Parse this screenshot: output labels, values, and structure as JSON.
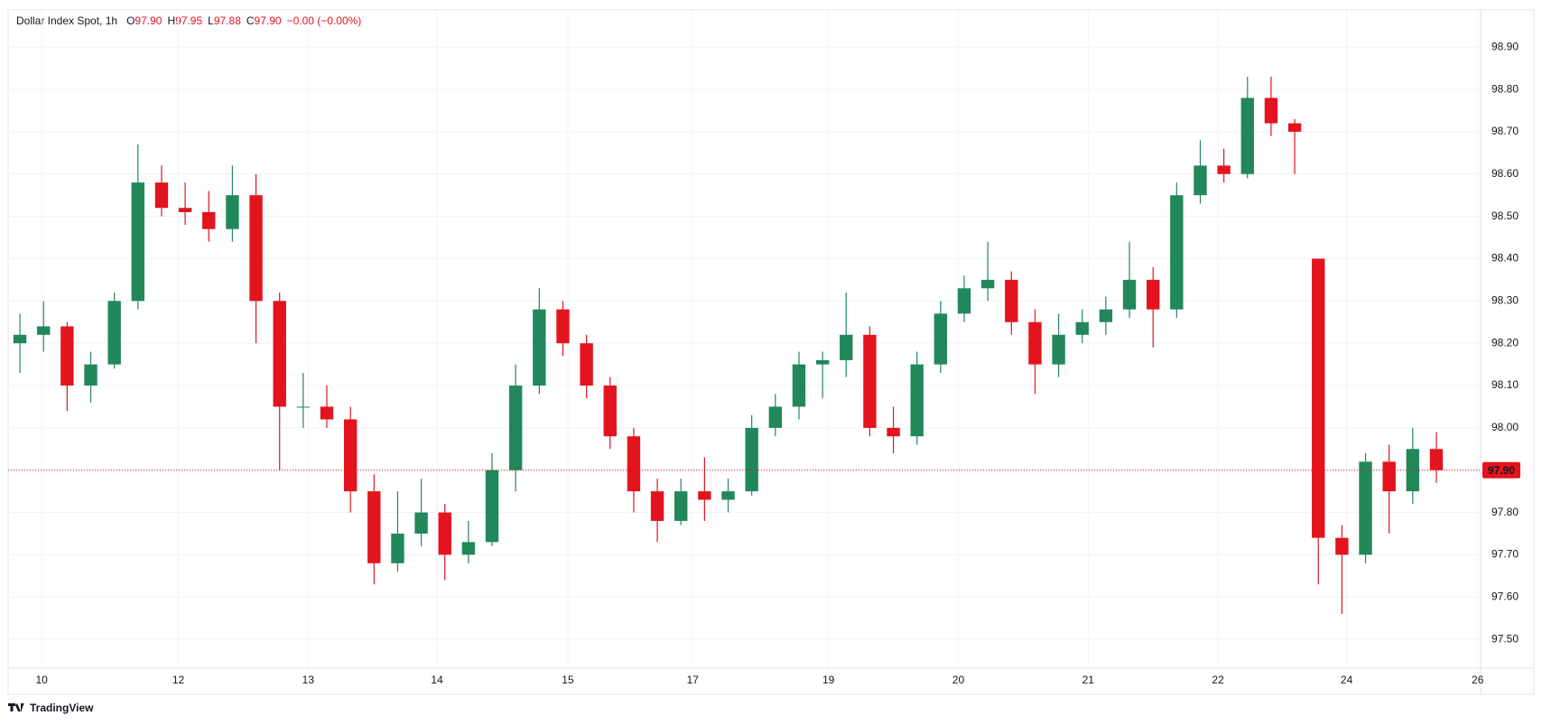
{
  "chart_data": {
    "type": "candlestick",
    "title": "Dollar Index Spot, 1h",
    "quote": [
      {
        "label": "O",
        "value": "97.90"
      },
      {
        "label": "H",
        "value": "97.95"
      },
      {
        "label": "L",
        "value": "97.88"
      },
      {
        "label": "C",
        "value": "97.90"
      }
    ],
    "change": "−0.00 (−0.00%)",
    "up_color": "#22875a",
    "down_color": "#e3141e",
    "x": [
      0.5,
      1.5,
      2.5,
      3.5,
      4.5,
      5.5,
      6.5,
      7.5,
      8.5,
      9.5,
      10.5,
      11.5,
      12.5,
      13.5,
      14.5,
      15.5,
      16.5,
      17.5,
      18.5,
      19.5,
      20.5,
      21.5,
      22.5,
      23.5,
      24.5,
      25.5,
      26.5,
      27.5,
      28.5,
      29.5,
      30.5,
      31.5,
      32.5,
      33.5,
      34.5,
      35.5,
      36.5,
      37.5,
      38.5,
      39.5,
      40.5,
      41.5,
      42.5,
      43.5,
      44.5,
      45.5,
      46.5,
      47.5,
      48.5,
      49.5,
      50.5,
      51.5,
      52.5,
      53.5,
      54.5,
      55.5,
      56.5,
      57.5,
      58.5,
      59.5,
      60.5
    ],
    "ohlc": [
      [
        98.2,
        98.27,
        98.13,
        98.22
      ],
      [
        98.22,
        98.3,
        98.18,
        98.24
      ],
      [
        98.24,
        98.25,
        98.04,
        98.1
      ],
      [
        98.1,
        98.18,
        98.06,
        98.15
      ],
      [
        98.15,
        98.32,
        98.14,
        98.3
      ],
      [
        98.3,
        98.67,
        98.28,
        98.58
      ],
      [
        98.58,
        98.62,
        98.5,
        98.52
      ],
      [
        98.52,
        98.58,
        98.48,
        98.51
      ],
      [
        98.51,
        98.56,
        98.44,
        98.47
      ],
      [
        98.47,
        98.62,
        98.44,
        98.55
      ],
      [
        98.55,
        98.6,
        98.2,
        98.3
      ],
      [
        98.3,
        98.32,
        97.9,
        98.05
      ],
      [
        98.05,
        98.13,
        98.0,
        98.05
      ],
      [
        98.05,
        98.1,
        98.0,
        98.02
      ],
      [
        98.02,
        98.05,
        97.8,
        97.85
      ],
      [
        97.85,
        97.89,
        97.63,
        97.68
      ],
      [
        97.68,
        97.85,
        97.66,
        97.75
      ],
      [
        97.75,
        97.88,
        97.72,
        97.8
      ],
      [
        97.8,
        97.82,
        97.64,
        97.7
      ],
      [
        97.7,
        97.78,
        97.68,
        97.73
      ],
      [
        97.73,
        97.94,
        97.72,
        97.9
      ],
      [
        97.9,
        98.15,
        97.85,
        98.1
      ],
      [
        98.1,
        98.33,
        98.08,
        98.28
      ],
      [
        98.28,
        98.3,
        98.17,
        98.2
      ],
      [
        98.2,
        98.22,
        98.07,
        98.1
      ],
      [
        98.1,
        98.12,
        97.95,
        97.98
      ],
      [
        97.98,
        98.0,
        97.8,
        97.85
      ],
      [
        97.85,
        97.88,
        97.73,
        97.78
      ],
      [
        97.78,
        97.88,
        97.77,
        97.85
      ],
      [
        97.85,
        97.93,
        97.78,
        97.83
      ],
      [
        97.83,
        97.88,
        97.8,
        97.85
      ],
      [
        97.85,
        98.03,
        97.84,
        98.0
      ],
      [
        98.0,
        98.08,
        97.98,
        98.05
      ],
      [
        98.05,
        98.18,
        98.02,
        98.15
      ],
      [
        98.15,
        98.18,
        98.07,
        98.16
      ],
      [
        98.16,
        98.32,
        98.12,
        98.22
      ],
      [
        98.22,
        98.24,
        97.98,
        98.0
      ],
      [
        98.0,
        98.05,
        97.94,
        97.98
      ],
      [
        97.98,
        98.18,
        97.96,
        98.15
      ],
      [
        98.15,
        98.3,
        98.13,
        98.27
      ],
      [
        98.27,
        98.36,
        98.25,
        98.33
      ],
      [
        98.33,
        98.44,
        98.3,
        98.35
      ],
      [
        98.35,
        98.37,
        98.22,
        98.25
      ],
      [
        98.25,
        98.28,
        98.08,
        98.15
      ],
      [
        98.15,
        98.27,
        98.12,
        98.22
      ],
      [
        98.22,
        98.28,
        98.2,
        98.25
      ],
      [
        98.25,
        98.31,
        98.22,
        98.28
      ],
      [
        98.28,
        98.44,
        98.26,
        98.35
      ],
      [
        98.35,
        98.38,
        98.19,
        98.28
      ],
      [
        98.28,
        98.58,
        98.26,
        98.55
      ],
      [
        98.55,
        98.68,
        98.53,
        98.62
      ],
      [
        98.62,
        98.66,
        98.58,
        98.6
      ],
      [
        98.6,
        98.83,
        98.59,
        98.78
      ],
      [
        98.78,
        98.83,
        98.69,
        98.72
      ],
      [
        98.72,
        98.73,
        98.6,
        98.7
      ],
      [
        98.4,
        98.4,
        97.63,
        97.74
      ],
      [
        97.74,
        97.77,
        97.56,
        97.7
      ],
      [
        97.7,
        97.94,
        97.68,
        97.92
      ],
      [
        97.92,
        97.96,
        97.75,
        97.85
      ],
      [
        97.85,
        98.0,
        97.82,
        97.95
      ],
      [
        97.95,
        97.99,
        97.87,
        97.9
      ]
    ],
    "xlim": [
      0,
      62.375
    ],
    "xticks": [
      {
        "value": 1.42,
        "label": "10"
      },
      {
        "value": 7.21,
        "label": "12"
      },
      {
        "value": 12.71,
        "label": "13"
      },
      {
        "value": 18.17,
        "label": "14"
      },
      {
        "value": 23.71,
        "label": "15"
      },
      {
        "value": 29,
        "label": "17"
      },
      {
        "value": 34.75,
        "label": "19"
      },
      {
        "value": 40.25,
        "label": "20"
      },
      {
        "value": 45.75,
        "label": "21"
      },
      {
        "value": 51.25,
        "label": "22"
      },
      {
        "value": 56.7,
        "label": "24"
      },
      {
        "value": 62.25,
        "label": "26"
      }
    ],
    "ylim": [
      97.432,
      98.988
    ],
    "yticks": [
      {
        "value": 97.5,
        "label": "97.50"
      },
      {
        "value": 97.6,
        "label": "97.60"
      },
      {
        "value": 97.7,
        "label": "97.70"
      },
      {
        "value": 97.8,
        "label": "97.80"
      },
      {
        "value": 97.9,
        "label": "97.90"
      },
      {
        "value": 98.0,
        "label": "98.00"
      },
      {
        "value": 98.1,
        "label": "98.10"
      },
      {
        "value": 98.2,
        "label": "98.20"
      },
      {
        "value": 98.3,
        "label": "98.30"
      },
      {
        "value": 98.4,
        "label": "98.40"
      },
      {
        "value": 98.5,
        "label": "98.50"
      },
      {
        "value": 98.6,
        "label": "98.60"
      },
      {
        "value": 98.7,
        "label": "98.70"
      },
      {
        "value": 98.8,
        "label": "98.80"
      },
      {
        "value": 98.9,
        "label": "98.90"
      }
    ],
    "grid": true,
    "last_price": {
      "value": 97.9,
      "label": "97.90"
    },
    "brand": "TradingView"
  }
}
